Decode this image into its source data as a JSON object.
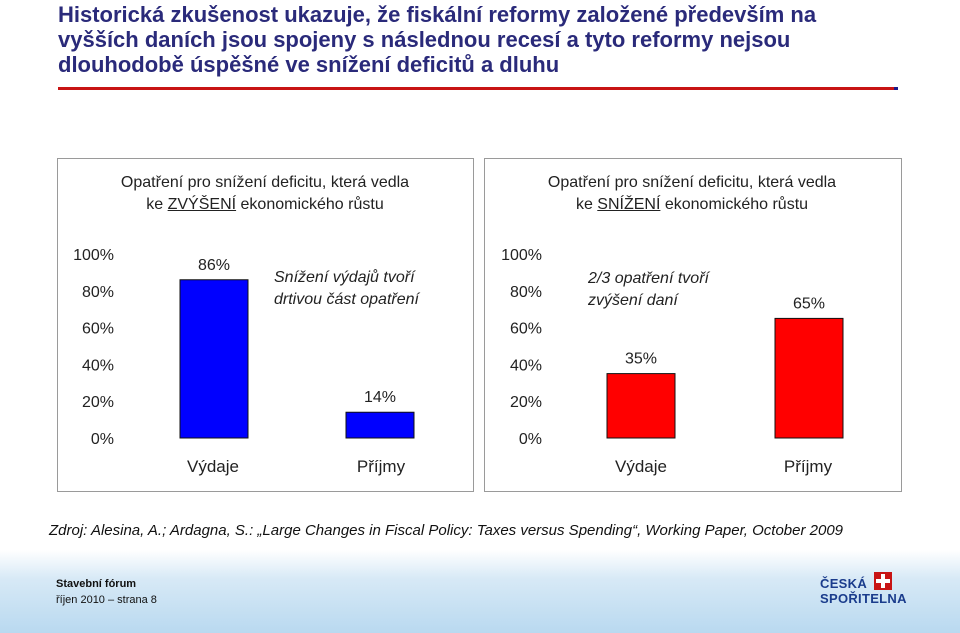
{
  "title": "Historická zkušenost ukazuje, že fiskální reformy založené především na\nvyšších daních jsou spojeny s následnou recesí a tyto reformy nejsou\ndlouhodobě úspěšné ve snížení deficitů a dluhu",
  "colors": {
    "title": "#2a2a7a",
    "accent_rule": "#c81414",
    "bar_left": "#0000ff",
    "bar_right": "#ff0000",
    "logo": "#1a3c8c"
  },
  "chart_data": [
    {
      "type": "bar",
      "title_before": "Opatření pro snížení deficitu, která vedla",
      "title_prefix": "ke ",
      "title_emph": "ZVÝŠENÍ",
      "title_suffix": " ekonomického růstu",
      "categories": [
        "Výdaje",
        "Příjmy"
      ],
      "values": [
        86,
        14
      ],
      "value_labels": [
        "86%",
        "14%"
      ],
      "ylim": [
        0,
        100
      ],
      "yticks": [
        "0%",
        "20%",
        "40%",
        "60%",
        "80%",
        "100%"
      ],
      "annotation_line1": "Snížení výdajů tvoří",
      "annotation_line2": "drtivou část opatření",
      "color": "#0000ff"
    },
    {
      "type": "bar",
      "title_before": "Opatření pro snížení deficitu, která vedla",
      "title_prefix": "ke ",
      "title_emph": "SNÍŽENÍ",
      "title_suffix": " ekonomického růstu",
      "categories": [
        "Výdaje",
        "Příjmy"
      ],
      "values": [
        35,
        65
      ],
      "value_labels": [
        "35%",
        "65%"
      ],
      "ylim": [
        0,
        100
      ],
      "yticks": [
        "0%",
        "20%",
        "40%",
        "60%",
        "80%",
        "100%"
      ],
      "annotation_line1": "2/3 opatření tvoří",
      "annotation_line2": "zvýšení daní",
      "color": "#ff0000"
    }
  ],
  "source": "Zdroj: Alesina, A.; Ardagna, S.: „Large Changes in Fiscal Policy: Taxes versus Spending“, Working Paper, October 2009",
  "footer": {
    "name": "Stavební fórum",
    "page": "říjen 2010 – strana 8"
  },
  "logo": {
    "line1": "ČESKÁ",
    "line2": "SPOŘITELNA",
    "icon": "cs-logo-icon"
  }
}
